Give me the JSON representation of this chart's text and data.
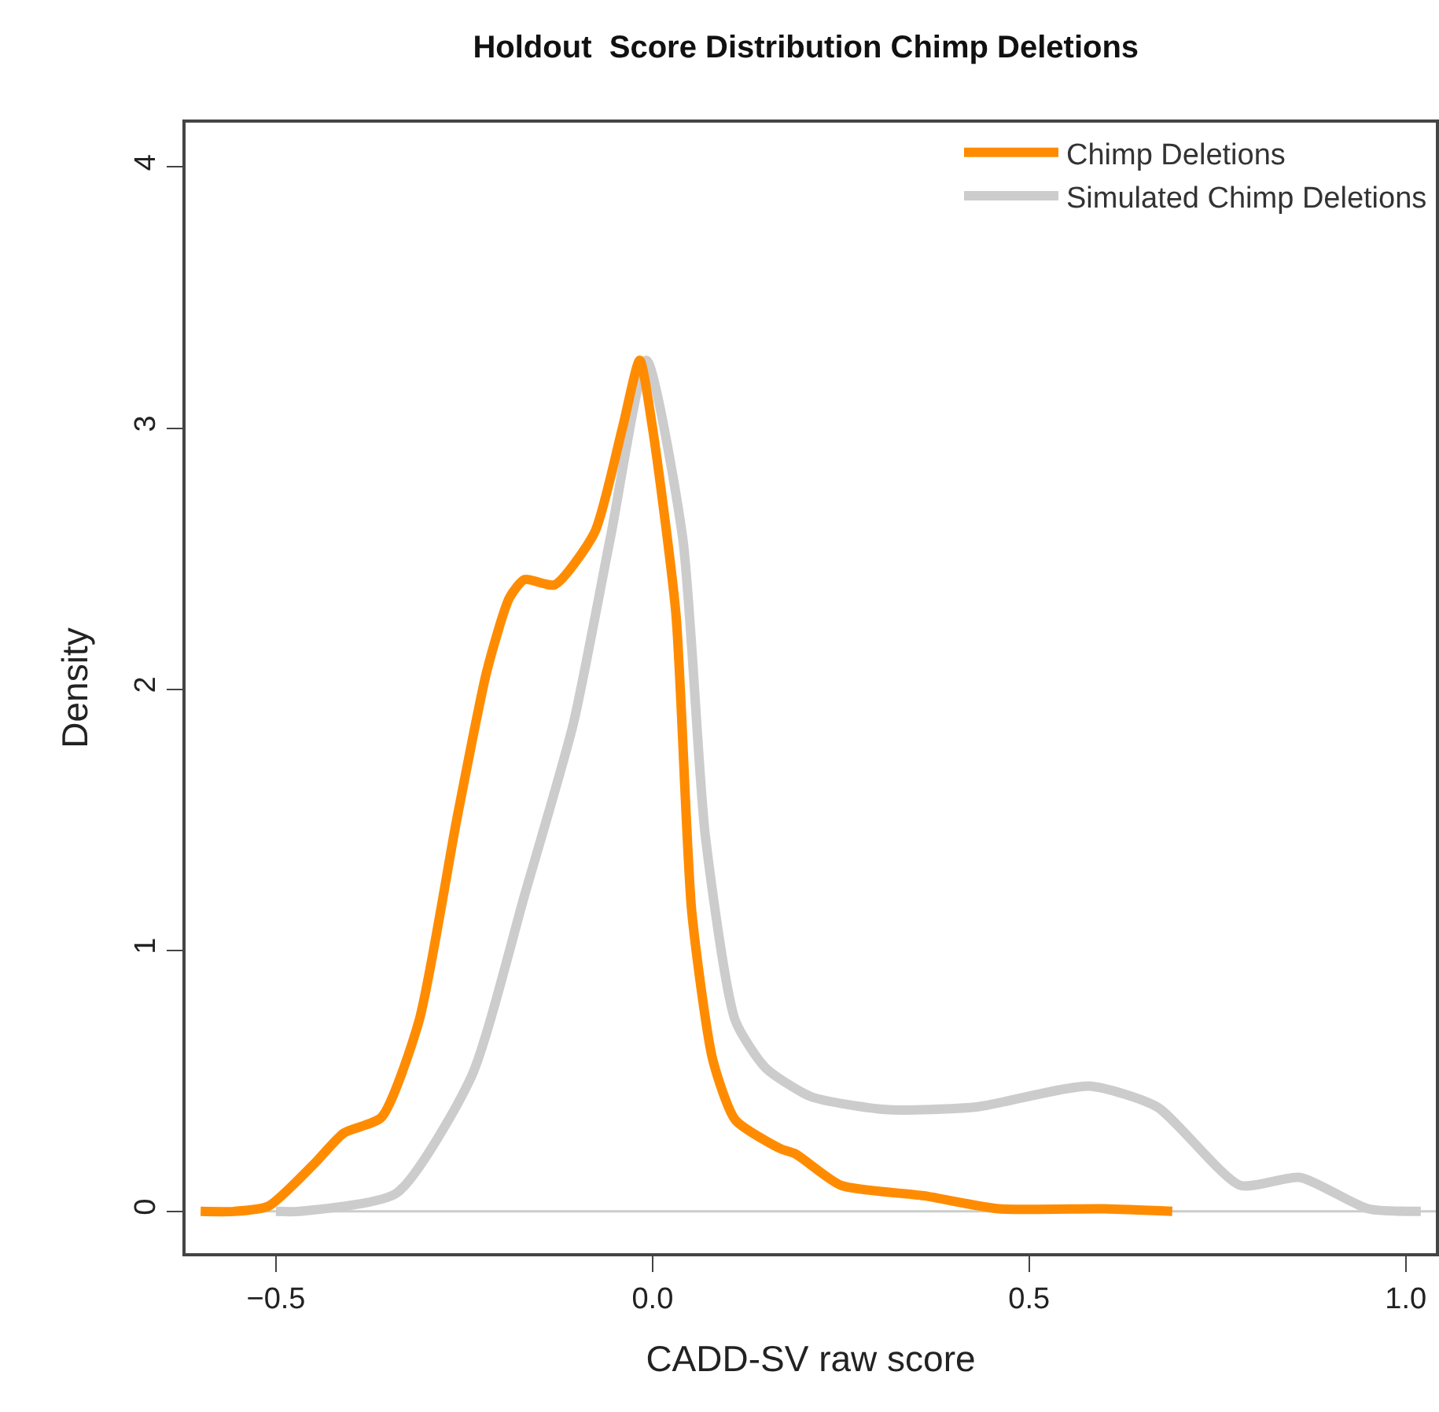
{
  "chart_data": {
    "type": "line",
    "title": "Holdout  Score Distribution Chimp Deletions",
    "xlabel": "CADD-SV raw score",
    "ylabel": "Density",
    "xlim": [
      -0.62,
      1.04
    ],
    "ylim": [
      -0.16,
      4.17
    ],
    "xticks": [
      {
        "value": -0.5,
        "label": "−0.5"
      },
      {
        "value": 0,
        "label": "0.0"
      },
      {
        "value": 0.5,
        "label": "0.5"
      },
      {
        "value": 1,
        "label": "1.0"
      }
    ],
    "yticks": [
      0,
      1,
      2,
      3,
      4
    ],
    "grid": false,
    "legend": "top right",
    "marker": "none",
    "line_style": "solid",
    "ref_lines": [
      {
        "axis": "y",
        "value": 0,
        "label": null,
        "color": "#cccccc"
      }
    ],
    "series": [
      {
        "name": "Chimp Deletions",
        "color": "#ff8c00",
        "x": [
          -0.6,
          -0.556,
          -0.51,
          -0.45,
          -0.41,
          -0.36,
          -0.31,
          -0.26,
          -0.22,
          -0.19,
          -0.17,
          -0.13,
          -0.077,
          -0.04,
          -0.017,
          0.0,
          0.031,
          0.052,
          0.08,
          0.11,
          0.17,
          0.19,
          0.25,
          0.36,
          0.46,
          0.6,
          0.69
        ],
        "values": [
          0,
          0,
          0.02,
          0.18,
          0.3,
          0.36,
          0.73,
          1.5,
          2.07,
          2.35,
          2.42,
          2.4,
          2.6,
          3.0,
          3.26,
          3.0,
          2.29,
          1.15,
          0.58,
          0.35,
          0.24,
          0.22,
          0.1,
          0.06,
          0.01,
          0.01,
          0
        ]
      },
      {
        "name": "Simulated Chimp Deletions",
        "color": "#cccccc",
        "x": [
          -0.5,
          -0.47,
          -0.34,
          -0.24,
          -0.17,
          -0.105,
          -0.056,
          -0.008,
          0.04,
          0.07,
          0.11,
          0.15,
          0.21,
          0.31,
          0.43,
          0.58,
          0.67,
          0.78,
          0.86,
          0.95,
          1.02
        ],
        "values": [
          0,
          0,
          0.07,
          0.52,
          1.21,
          1.87,
          2.58,
          3.26,
          2.58,
          1.44,
          0.73,
          0.55,
          0.44,
          0.39,
          0.4,
          0.48,
          0.4,
          0.1,
          0.13,
          0.01,
          0
        ]
      }
    ]
  }
}
